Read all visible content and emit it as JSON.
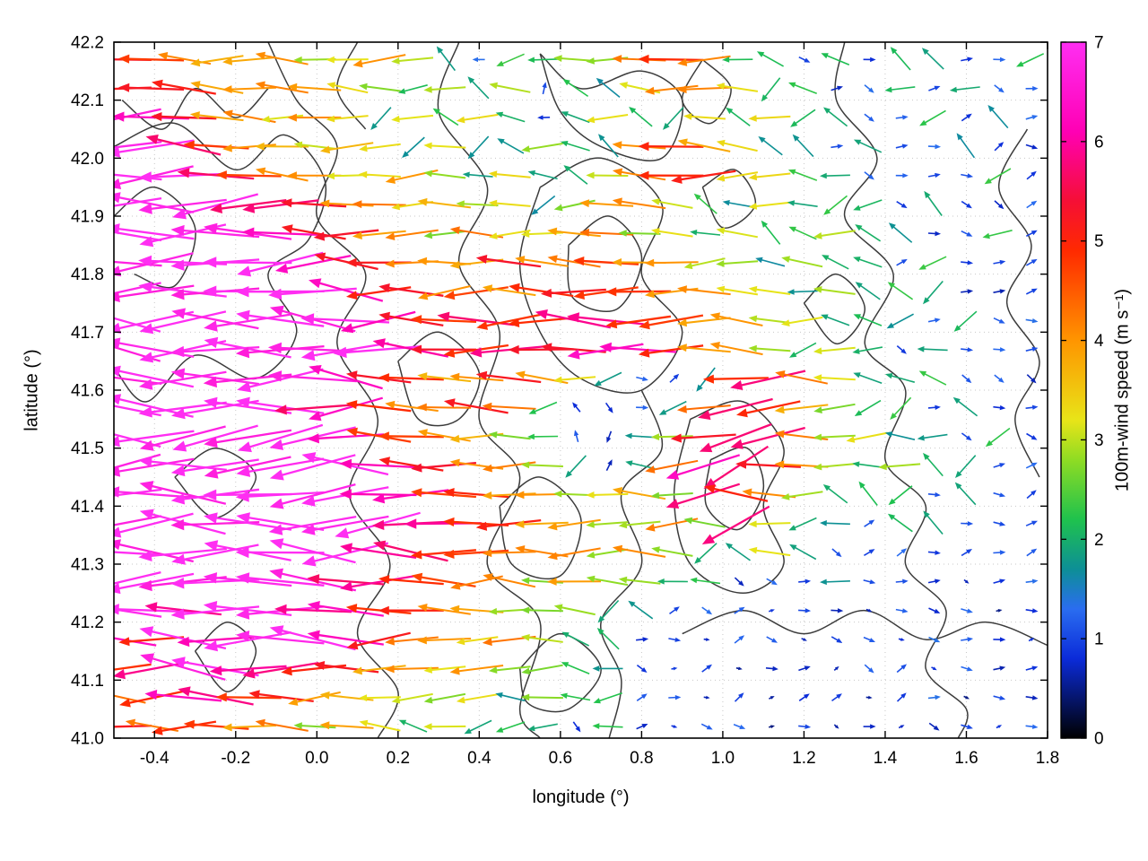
{
  "chart_data": {
    "type": "quiver",
    "title": "",
    "xlabel": "longitude (°)",
    "ylabel": "latitude (°)",
    "xlim": [
      -0.5,
      1.8
    ],
    "ylim": [
      41.0,
      42.2
    ],
    "xticks": [
      -0.4,
      -0.2,
      0.0,
      0.2,
      0.4,
      0.6,
      0.8,
      1.0,
      1.2,
      1.4,
      1.6,
      1.8
    ],
    "xtick_labels": [
      "-0.4",
      "-0.2",
      "0.0",
      "0.2",
      "0.4",
      "0.6",
      "0.8",
      "1.0",
      "1.2",
      "1.4",
      "1.6",
      "1.8"
    ],
    "yticks": [
      41.0,
      41.1,
      41.2,
      41.3,
      41.4,
      41.5,
      41.6,
      41.7,
      41.8,
      41.9,
      42.0,
      42.1,
      42.2
    ],
    "ytick_labels": [
      "41.0",
      "41.1",
      "41.2",
      "41.3",
      "41.4",
      "41.5",
      "41.6",
      "41.7",
      "41.8",
      "41.9",
      "42.0",
      "42.1",
      "42.2"
    ],
    "grid": "dotted",
    "colorbar": {
      "label": "100m-wind speed (m s⁻¹)",
      "min": 0,
      "max": 7,
      "ticks": [
        0,
        1,
        2,
        3,
        4,
        5,
        6,
        7
      ],
      "tick_labels": [
        "0",
        "1",
        "2",
        "3",
        "4",
        "5",
        "6",
        "7"
      ],
      "palette_stops": [
        [
          0.0,
          "#000000"
        ],
        [
          0.8,
          "#0b2bd9"
        ],
        [
          1.3,
          "#2a6df0"
        ],
        [
          1.7,
          "#0d8f96"
        ],
        [
          2.2,
          "#1fc24d"
        ],
        [
          2.8,
          "#8fdc23"
        ],
        [
          3.2,
          "#e8e418"
        ],
        [
          4.0,
          "#ff9500"
        ],
        [
          4.9,
          "#ff2a00"
        ],
        [
          5.4,
          "#f50f35"
        ],
        [
          6.1,
          "#ff00b4"
        ],
        [
          7.0,
          "#ff2ef2"
        ]
      ]
    },
    "vector_grid": {
      "x0": -0.48,
      "dx": 0.08,
      "nx": 29,
      "y0": 42.17,
      "dy": -0.05,
      "ny": 24,
      "speed_rows": [
        "55444433432122334542212122112",
        "55544443323231223443221121211",
        "76544343232321232232322112121",
        "77654434323223224543221211211",
        "77765443343232234553322111121",
        "77776654434332344322322212111",
        "77777655443433443323223221121",
        "77777765544454454433232212111",
        "77777776554545555443323222111",
        "77777777655655665544332221211",
        "77777777765565566544323212111",
        "77777776554454321125643222111",
        "77777766544542111246543221211",
        "77777776554432112356643322121",
        "77777777655443212466543232211",
        "77777777665544334365432221211",
        "77777777766554433436322122111",
        "77777777665544434322321111111",
        "77777776655443433221112111011",
        "77677766554433322111011011101",
        "65767776544343221101101101110",
        "56776655443433221010110110111",
        "45665544333323221101011011011",
        "54554434323222121011010101101"
      ],
      "direction_rule": {
        "strong_deg": 180,
        "strong_jitter": 13,
        "magenta_jitter": 17,
        "medium_jitter": 55,
        "weak_deg": 0,
        "weak_jitter": 45,
        "weak_east_min_lon": 0.72,
        "streak_zone": {
          "lon_min": 0.5,
          "lon_max": 1.35,
          "lat_min": 41.3,
          "lat_max": 41.65,
          "deg": 205,
          "jitter": 14
        }
      }
    },
    "contour_color": "#3c3c3c",
    "contours": [
      [
        [
          -0.12,
          42.2
        ],
        [
          -0.05,
          42.1
        ],
        [
          0.05,
          42.02
        ],
        [
          0.0,
          41.9
        ],
        [
          0.12,
          41.8
        ],
        [
          0.05,
          41.68
        ],
        [
          0.15,
          41.55
        ],
        [
          0.08,
          41.42
        ],
        [
          0.18,
          41.3
        ],
        [
          0.1,
          41.18
        ],
        [
          0.2,
          41.08
        ],
        [
          0.15,
          41.0
        ]
      ],
      [
        [
          0.35,
          42.2
        ],
        [
          0.3,
          42.08
        ],
        [
          0.42,
          41.95
        ],
        [
          0.35,
          41.82
        ],
        [
          0.45,
          41.7
        ],
        [
          0.4,
          41.55
        ],
        [
          0.5,
          41.45
        ],
        [
          0.42,
          41.3
        ],
        [
          0.55,
          41.2
        ],
        [
          0.5,
          41.05
        ],
        [
          0.55,
          41.0
        ]
      ],
      [
        [
          0.55,
          41.95
        ],
        [
          0.7,
          42.0
        ],
        [
          0.85,
          41.92
        ],
        [
          0.8,
          41.8
        ],
        [
          0.9,
          41.7
        ],
        [
          0.8,
          41.6
        ],
        [
          0.65,
          41.62
        ],
        [
          0.55,
          41.7
        ],
        [
          0.5,
          41.82
        ],
        [
          0.55,
          41.95
        ]
      ],
      [
        [
          0.55,
          42.18
        ],
        [
          0.65,
          42.12
        ],
        [
          0.8,
          42.15
        ],
        [
          0.9,
          42.1
        ],
        [
          0.85,
          42.0
        ],
        [
          0.7,
          42.02
        ],
        [
          0.6,
          42.08
        ],
        [
          0.55,
          42.18
        ]
      ],
      [
        [
          0.95,
          42.17
        ],
        [
          1.02,
          42.12
        ],
        [
          0.97,
          42.06
        ],
        [
          0.9,
          42.1
        ],
        [
          0.95,
          42.17
        ]
      ],
      [
        [
          1.3,
          42.2
        ],
        [
          1.28,
          42.1
        ],
        [
          1.38,
          42.0
        ],
        [
          1.3,
          41.9
        ],
        [
          1.42,
          41.8
        ],
        [
          1.35,
          41.68
        ],
        [
          1.45,
          41.6
        ],
        [
          1.4,
          41.48
        ],
        [
          1.5,
          41.4
        ],
        [
          1.45,
          41.3
        ],
        [
          1.55,
          41.22
        ],
        [
          1.5,
          41.12
        ],
        [
          1.6,
          41.05
        ],
        [
          1.58,
          41.0
        ]
      ],
      [
        [
          1.75,
          42.05
        ],
        [
          1.68,
          41.95
        ],
        [
          1.76,
          41.85
        ],
        [
          1.7,
          41.75
        ],
        [
          1.78,
          41.65
        ],
        [
          1.72,
          41.55
        ],
        [
          1.78,
          41.45
        ]
      ],
      [
        [
          0.92,
          41.55
        ],
        [
          1.05,
          41.58
        ],
        [
          1.15,
          41.5
        ],
        [
          1.1,
          41.4
        ],
        [
          1.15,
          41.3
        ],
        [
          1.05,
          41.25
        ],
        [
          0.92,
          41.3
        ],
        [
          0.88,
          41.42
        ],
        [
          0.92,
          41.55
        ]
      ],
      [
        [
          0.72,
          41.0
        ],
        [
          0.75,
          41.1
        ],
        [
          0.7,
          41.2
        ],
        [
          0.8,
          41.3
        ],
        [
          0.75,
          41.42
        ],
        [
          0.85,
          41.5
        ],
        [
          0.8,
          41.6
        ]
      ],
      [
        [
          0.9,
          41.18
        ],
        [
          1.05,
          41.22
        ],
        [
          1.2,
          41.18
        ],
        [
          1.35,
          41.22
        ],
        [
          1.5,
          41.17
        ],
        [
          1.65,
          41.2
        ],
        [
          1.8,
          41.16
        ]
      ],
      [
        [
          -0.3,
          41.15
        ],
        [
          -0.22,
          41.2
        ],
        [
          -0.15,
          41.15
        ],
        [
          -0.22,
          41.08
        ],
        [
          -0.3,
          41.15
        ]
      ],
      [
        [
          -0.35,
          41.45
        ],
        [
          -0.25,
          41.5
        ],
        [
          -0.15,
          41.45
        ],
        [
          -0.25,
          41.38
        ],
        [
          -0.35,
          41.45
        ]
      ],
      [
        [
          0.2,
          41.65
        ],
        [
          0.3,
          41.7
        ],
        [
          0.4,
          41.63
        ],
        [
          0.35,
          41.55
        ],
        [
          0.25,
          41.55
        ],
        [
          0.2,
          41.65
        ]
      ],
      [
        [
          -0.48,
          42.1
        ],
        [
          -0.38,
          42.05
        ],
        [
          -0.3,
          42.12
        ],
        [
          -0.2,
          42.07
        ],
        [
          -0.12,
          42.12
        ]
      ],
      [
        [
          0.45,
          41.4
        ],
        [
          0.55,
          41.45
        ],
        [
          0.65,
          41.38
        ],
        [
          0.6,
          41.28
        ],
        [
          0.48,
          41.3
        ],
        [
          0.45,
          41.4
        ]
      ],
      [
        [
          1.2,
          41.75
        ],
        [
          1.28,
          41.8
        ],
        [
          1.35,
          41.74
        ],
        [
          1.28,
          41.68
        ],
        [
          1.2,
          41.75
        ]
      ],
      [
        [
          0.62,
          41.85
        ],
        [
          0.72,
          41.9
        ],
        [
          0.8,
          41.83
        ],
        [
          0.74,
          41.74
        ],
        [
          0.63,
          41.76
        ],
        [
          0.62,
          41.85
        ]
      ],
      [
        [
          0.97,
          41.48
        ],
        [
          1.06,
          41.5
        ],
        [
          1.1,
          41.43
        ],
        [
          1.04,
          41.36
        ],
        [
          0.96,
          41.4
        ],
        [
          0.97,
          41.48
        ]
      ],
      [
        [
          0.5,
          41.12
        ],
        [
          0.6,
          41.18
        ],
        [
          0.7,
          41.12
        ],
        [
          0.62,
          41.05
        ],
        [
          0.52,
          41.06
        ],
        [
          0.5,
          41.12
        ]
      ],
      [
        [
          0.95,
          41.95
        ],
        [
          1.03,
          41.98
        ],
        [
          1.08,
          41.92
        ],
        [
          1.0,
          41.88
        ],
        [
          0.95,
          41.95
        ]
      ],
      [
        [
          -0.5,
          42.02
        ],
        [
          -0.35,
          42.06
        ],
        [
          -0.2,
          41.98
        ],
        [
          -0.08,
          42.04
        ],
        [
          0.02,
          41.96
        ],
        [
          -0.02,
          41.86
        ],
        [
          -0.12,
          41.8
        ],
        [
          -0.05,
          41.7
        ],
        [
          -0.15,
          41.62
        ],
        [
          -0.3,
          41.66
        ],
        [
          -0.42,
          41.58
        ],
        [
          -0.5,
          41.64
        ]
      ],
      [
        [
          -0.5,
          41.9
        ],
        [
          -0.4,
          41.95
        ],
        [
          -0.3,
          41.88
        ],
        [
          -0.35,
          41.78
        ],
        [
          -0.45,
          41.8
        ]
      ],
      [
        [
          0.1,
          42.2
        ],
        [
          0.05,
          42.12
        ],
        [
          0.12,
          42.05
        ]
      ]
    ]
  }
}
